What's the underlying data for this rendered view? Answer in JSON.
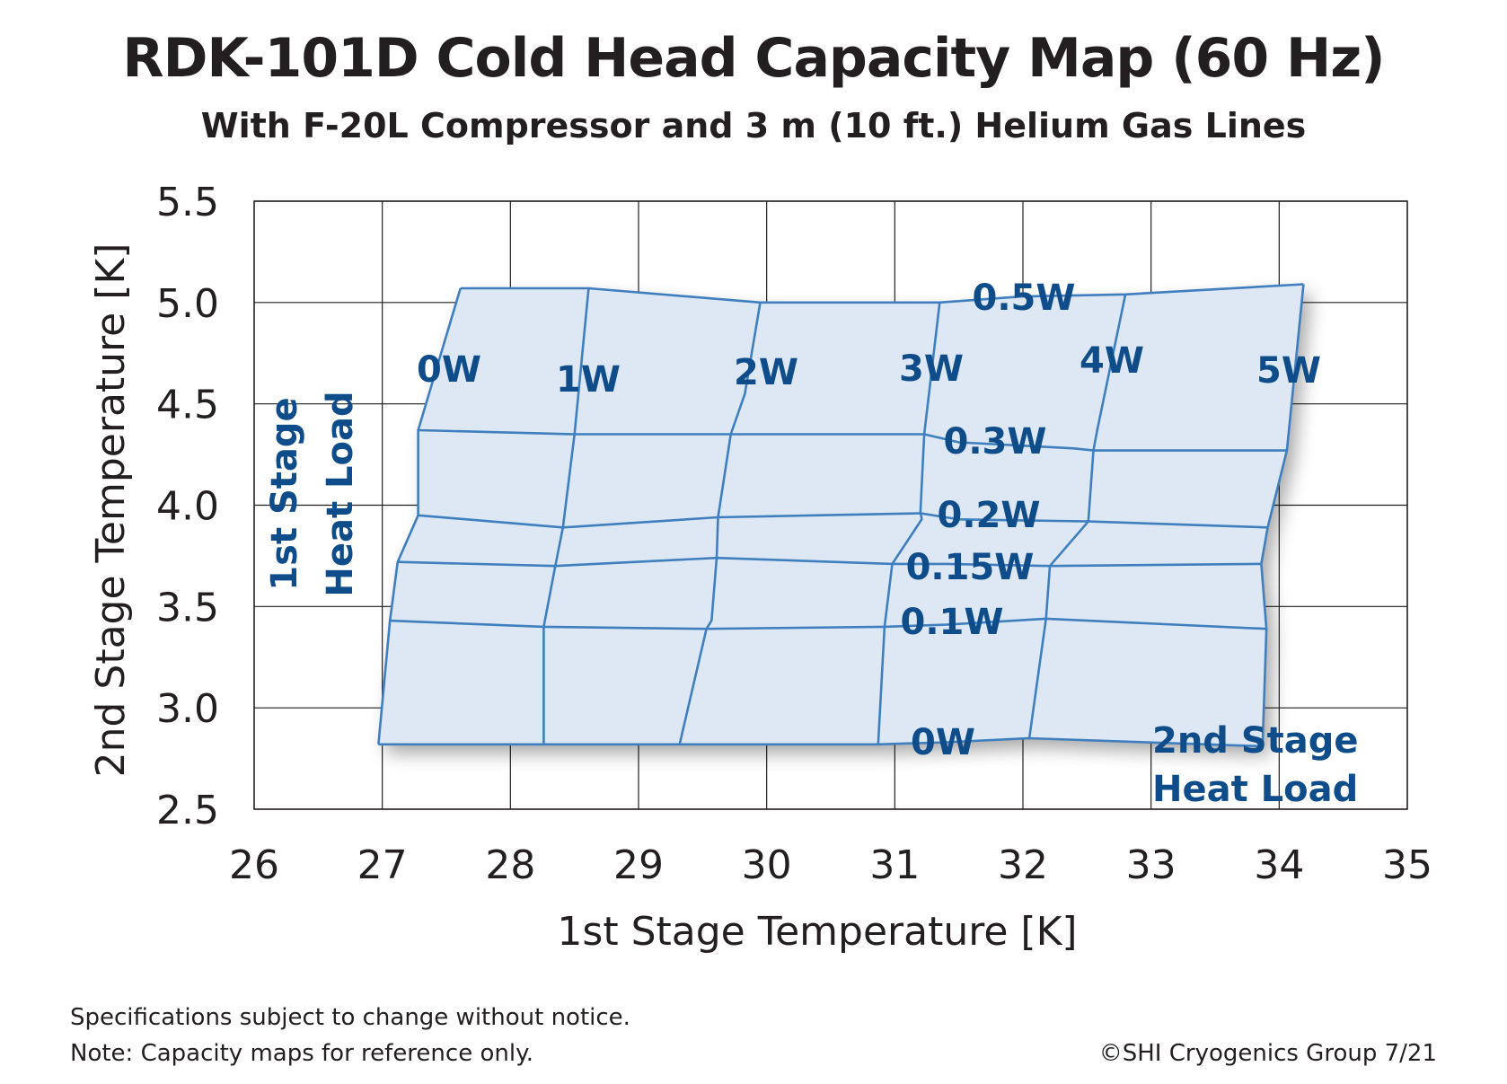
{
  "title": "RDK-101D Cold Head Capacity Map (60 Hz)",
  "subtitle": "With F-20L Compressor and 3 m (10 ft.) Helium Gas Lines",
  "footer": {
    "note1": "Specifications subject to change without notice.",
    "note2": "Note:  Capacity maps for reference only.",
    "copyright": "©SHI Cryogenics Group 7/21"
  },
  "colors": {
    "line": "#3f7fbf",
    "fill": "#dde8f4",
    "label": "#0f4c8a",
    "grid": "#231f20",
    "text": "#231f20"
  },
  "chart_data": {
    "type": "line",
    "xlabel": "1st Stage Temperature [K]",
    "ylabel": "2nd Stage Temperature [K]",
    "xlim": [
      26,
      35
    ],
    "ylim": [
      2.5,
      5.5
    ],
    "xticks": [
      "26",
      "27",
      "28",
      "29",
      "30",
      "31",
      "32",
      "33",
      "34",
      "35"
    ],
    "yticks": [
      "2.5",
      "3.0",
      "3.5",
      "4.0",
      "4.5",
      "5.0",
      "5.5"
    ],
    "grid": true,
    "group_labels": {
      "first_stage": [
        "1st Stage",
        "Heat Load"
      ],
      "second_stage": [
        "2nd Stage",
        "Heat Load"
      ]
    },
    "first_stage_lines": [
      {
        "name": "0W",
        "points": [
          [
            27.61,
            5.07
          ],
          [
            27.28,
            4.37
          ],
          [
            27.28,
            3.95
          ],
          [
            27.12,
            3.72
          ],
          [
            27.06,
            3.43
          ],
          [
            26.97,
            2.82
          ]
        ]
      },
      {
        "name": "1W",
        "points": [
          [
            28.61,
            5.07
          ],
          [
            28.5,
            4.35
          ],
          [
            28.41,
            3.89
          ],
          [
            28.35,
            3.7
          ],
          [
            28.26,
            3.4
          ],
          [
            28.26,
            2.82
          ]
        ]
      },
      {
        "name": "2W",
        "points": [
          [
            29.95,
            5.0
          ],
          [
            29.83,
            4.55
          ],
          [
            29.72,
            4.35
          ],
          [
            29.62,
            3.94
          ],
          [
            29.61,
            3.74
          ],
          [
            29.57,
            3.43
          ],
          [
            29.53,
            3.39
          ],
          [
            29.32,
            2.82
          ]
        ]
      },
      {
        "name": "3W",
        "points": [
          [
            31.35,
            5.0
          ],
          [
            31.23,
            4.35
          ],
          [
            31.2,
            3.97
          ],
          [
            31.21,
            3.93
          ],
          [
            30.98,
            3.71
          ],
          [
            30.92,
            3.4
          ],
          [
            30.87,
            2.82
          ]
        ]
      },
      {
        "name": "4W",
        "points": [
          [
            32.8,
            5.04
          ],
          [
            32.58,
            4.37
          ],
          [
            32.55,
            4.27
          ],
          [
            32.51,
            3.92
          ],
          [
            32.21,
            3.7
          ],
          [
            32.18,
            3.44
          ],
          [
            32.05,
            2.85
          ]
        ]
      },
      {
        "name": "5W",
        "points": [
          [
            34.19,
            5.09
          ],
          [
            34.06,
            4.27
          ],
          [
            33.91,
            3.89
          ],
          [
            33.86,
            3.71
          ],
          [
            33.9,
            3.39
          ],
          [
            33.87,
            2.81
          ]
        ]
      }
    ],
    "second_stage_lines": [
      {
        "name": "0.5W",
        "points": [
          [
            27.61,
            5.07
          ],
          [
            28.2,
            5.07
          ],
          [
            28.61,
            5.07
          ],
          [
            29.95,
            5.0
          ],
          [
            31.35,
            5.0
          ],
          [
            32.0,
            5.03
          ],
          [
            32.8,
            5.04
          ],
          [
            34.19,
            5.09
          ]
        ]
      },
      {
        "name": "0.3W",
        "points": [
          [
            27.28,
            4.37
          ],
          [
            28.5,
            4.35
          ],
          [
            29.72,
            4.35
          ],
          [
            31.23,
            4.35
          ],
          [
            31.5,
            4.31
          ],
          [
            32.4,
            4.28
          ],
          [
            32.55,
            4.27
          ],
          [
            33.2,
            4.27
          ],
          [
            34.06,
            4.27
          ]
        ]
      },
      {
        "name": "0.2W",
        "points": [
          [
            27.28,
            3.95
          ],
          [
            28.41,
            3.89
          ],
          [
            29.62,
            3.94
          ],
          [
            31.2,
            3.96
          ],
          [
            31.5,
            3.93
          ],
          [
            32.51,
            3.92
          ],
          [
            33.91,
            3.89
          ]
        ]
      },
      {
        "name": "0.15W",
        "points": [
          [
            27.12,
            3.72
          ],
          [
            28.35,
            3.7
          ],
          [
            29.61,
            3.74
          ],
          [
            30.98,
            3.71
          ],
          [
            31.4,
            3.71
          ],
          [
            32.21,
            3.7
          ],
          [
            33.86,
            3.71
          ]
        ]
      },
      {
        "name": "0.1W",
        "points": [
          [
            27.06,
            3.43
          ],
          [
            28.26,
            3.4
          ],
          [
            29.53,
            3.39
          ],
          [
            30.92,
            3.4
          ],
          [
            31.4,
            3.41
          ],
          [
            32.18,
            3.44
          ],
          [
            33.9,
            3.39
          ]
        ]
      },
      {
        "name": "0W",
        "points": [
          [
            26.97,
            2.82
          ],
          [
            28.26,
            2.82
          ],
          [
            29.32,
            2.82
          ],
          [
            30.87,
            2.82
          ],
          [
            31.4,
            2.83
          ],
          [
            32.05,
            2.85
          ],
          [
            33.87,
            2.81
          ]
        ]
      }
    ]
  }
}
